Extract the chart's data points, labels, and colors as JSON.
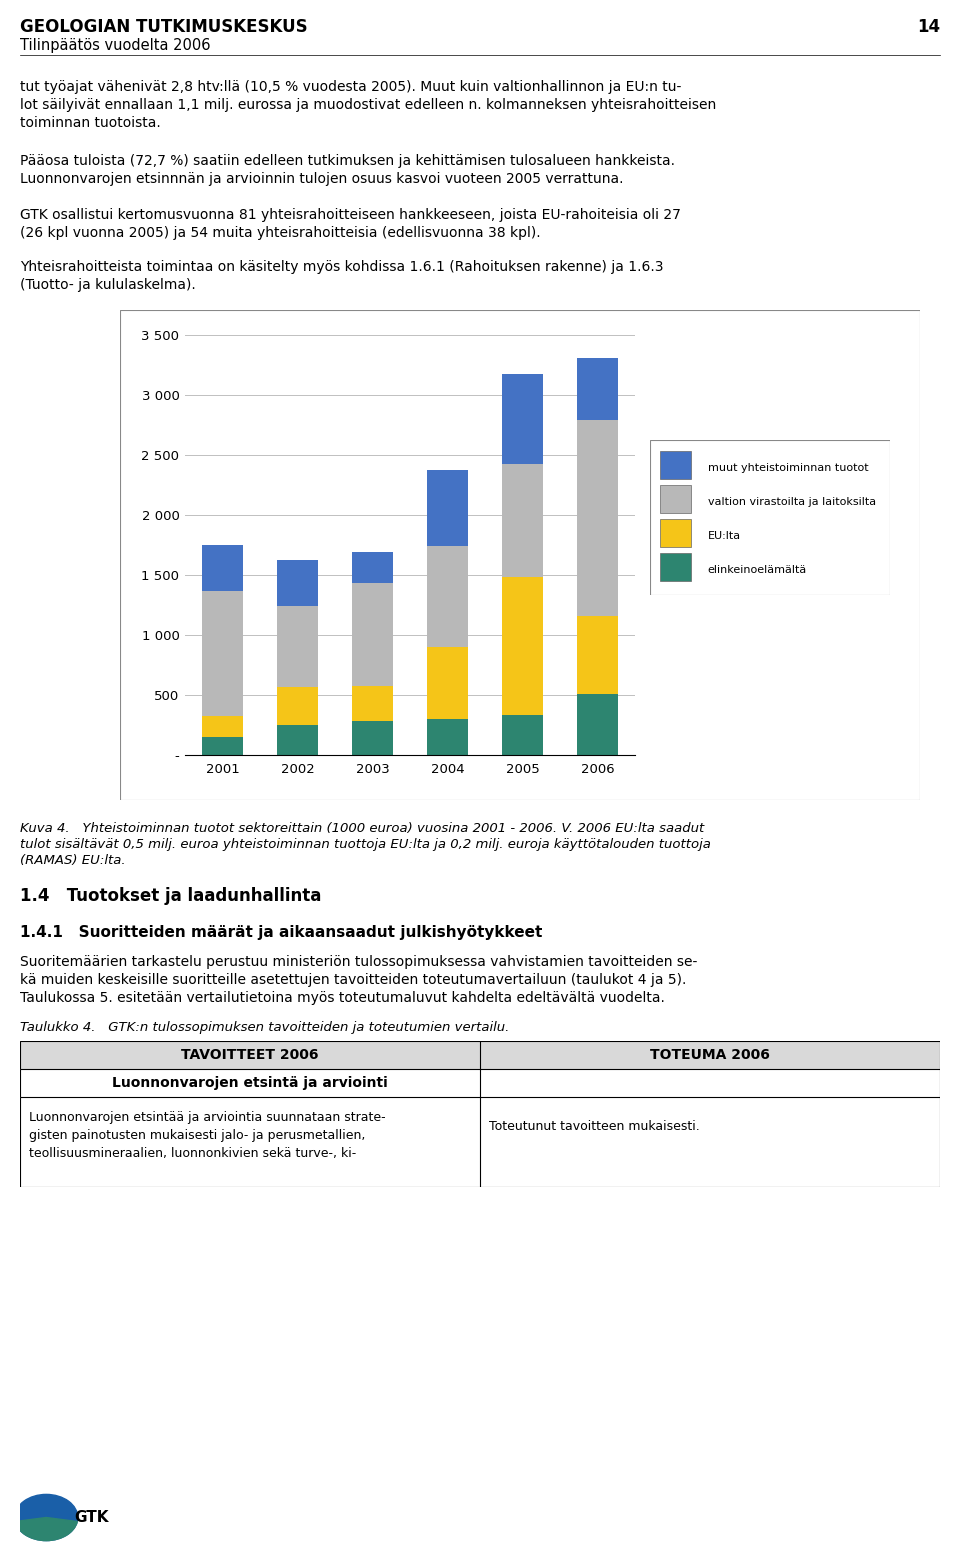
{
  "years": [
    "2001",
    "2002",
    "2003",
    "2004",
    "2005",
    "2006"
  ],
  "elinkeinoelämältä": [
    150,
    250,
    280,
    300,
    335,
    510
  ],
  "EU_lta": [
    175,
    320,
    295,
    600,
    1150,
    645
  ],
  "valtion_virastoilta": [
    1040,
    675,
    855,
    840,
    940,
    1640
  ],
  "muut_yhteistoiminnan": [
    385,
    380,
    265,
    635,
    750,
    510
  ],
  "colors": {
    "elinkeinoelämältä": "#2d8570",
    "EU_lta": "#f5c518",
    "valtion_virastoilta": "#b8b8b8",
    "muut_yhteistoiminnan": "#4472c4"
  },
  "legend_labels": [
    [
      "muut_yhteistoiminnan",
      "muut yhteistoiminnan tuotot"
    ],
    [
      "valtion_virastoilta",
      "valtion virastoilta ja laitoksilta"
    ],
    [
      "EU_lta",
      "EU:lta"
    ],
    [
      "elinkeinoelämältä",
      "elinkeinoelämältä"
    ]
  ],
  "ylim": [
    0,
    3500
  ],
  "ytick_vals": [
    0,
    500,
    1000,
    1500,
    2000,
    2500,
    3000,
    3500
  ],
  "ytick_labels": [
    "-",
    "500",
    "1 000",
    "1 500",
    "2 000",
    "2 500",
    "3 000",
    "3 500"
  ],
  "bar_width": 0.55,
  "page_title": "GEOLOGIAN TUTKIMUSKESKUS",
  "page_subtitle": "Tilinpäätös vuodelta 2006",
  "page_number": "14",
  "body_para1": [
    "tut työajat vähenivät 2,8 htv:llä (10,5 % vuodesta 2005). Muut kuin valtionhallinnon ja EU:n tu-",
    "lot säilyivät ennallaan 1,1 milj. eurossa ja muodostivat edelleen n. kolmanneksen yhteisrahoitteisen",
    "toiminnan tuotoista."
  ],
  "body_para2": [
    "Pääosa tuloista (72,7 %) saatiin edelleen tutkimuksen ja kehittämisen tulosalueen hankkeista.",
    "Luonnonvarojen etsinnnän ja arvioinnin tulojen osuus kasvoi vuoteen 2005 verrattuna."
  ],
  "body_para3": [
    "GTK osallistui kertomusvuonna 81 yhteisrahoitteiseen hankkeeseen, joista EU-rahoiteisia oli 27",
    "(26 kpl vuonna 2005) ja 54 muita yhteisrahoitteisia (edellisvuonna 38 kpl)."
  ],
  "body_para4": [
    "Yhteisrahoitteista toimintaa on käsitelty myös kohdissa 1.6.1 (Rahoituksen rakenne) ja 1.6.3",
    "(Tuotto- ja kululaskelma)."
  ],
  "caption_line1": "Kuva 4.   Yhteistoiminnan tuotot sektoreittain (1000 euroa) vuosina 2001 - 2006. V. 2006 EU:lta saadut",
  "caption_line2": "tulot sisältävät 0,5 milj. euroa yhteistoiminnan tuottoja EU:lta ja 0,2 milj. euroja käyttötalouden tuottoja",
  "caption_line3": "(RAMAS) EU:lta.",
  "sec14": "1.4   Tuotokset ja laadunhallinta",
  "sec141": "1.4.1   Suoritteiden määrät ja aikaansaadut julkishyötykkeet",
  "para141_1": "Suoritemäärien tarkastelu perustuu ministeriön tulossopimuksessa vahvistamien tavoitteiden se-",
  "para141_2": "kä muiden keskeisille suoritteille asetettujen tavoitteiden toteutumavertailuun (taulukot 4 ja 5).",
  "para141_3": "Taulukossa 5. esitetään vertailutietoina myös toteutumaluvut kahdelta edeltävältä vuodelta.",
  "tbl_caption": "Taulukko 4.   GTK:n tulossopimuksen tavoitteiden ja toteutumien vertailu.",
  "tbl_h1": "TAVOITTEET 2006",
  "tbl_h2": "TOTEUMA 2006",
  "tbl_sub": "Luonnonvarojen etsintä ja arviointi",
  "tbl_left1": "Luonnonvarojen etsintää ja arviointia suunnataan strate-",
  "tbl_left2": "gisten painotusten mukaisesti jalo- ja perusmetallien,",
  "tbl_left3": "teollisuusmineraalien, luonnonkivien sekä turve-, ki-",
  "tbl_right": "Toteutunut tavoitteen mukaisesti.",
  "bg": "#ffffff",
  "grid_color": "#c0c0c0"
}
